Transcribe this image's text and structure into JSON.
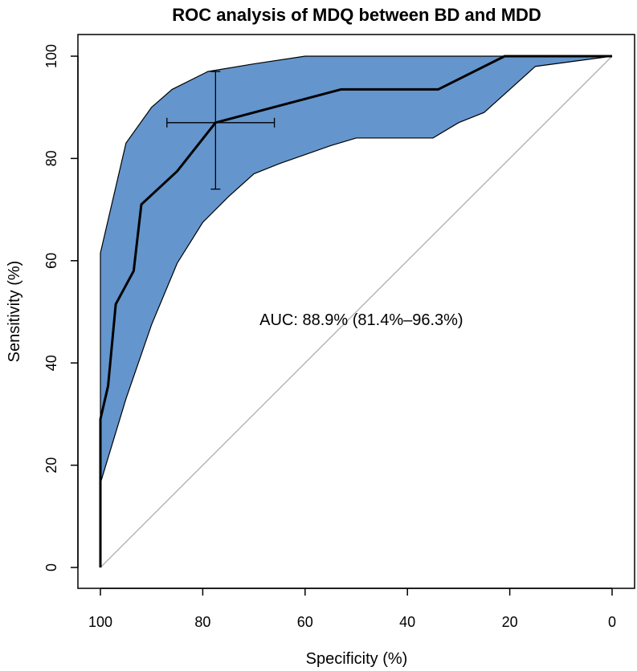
{
  "chart_data": {
    "type": "line",
    "title": "ROC analysis of MDQ between BD and MDD",
    "xlabel": "Specificity (%)",
    "ylabel": "Sensitivity (%)",
    "xlim": [
      100,
      0
    ],
    "ylim": [
      0,
      100
    ],
    "x_reversed": true,
    "x_ticks": [
      100,
      80,
      60,
      40,
      20,
      0
    ],
    "y_ticks": [
      0,
      20,
      40,
      60,
      80,
      100
    ],
    "grid": false,
    "colors": {
      "ci_band": "#6495cd",
      "roc_line": "#000000",
      "diagonal": "#b3b3b3"
    },
    "roc_curve": {
      "specificity": [
        100,
        100,
        98.5,
        97,
        93.5,
        92,
        85,
        77.5,
        53,
        34,
        21,
        0
      ],
      "sensitivity": [
        0,
        29,
        35.5,
        51.5,
        58,
        71,
        77.5,
        87,
        93.5,
        93.5,
        100,
        100
      ]
    },
    "ci_band": {
      "upper": {
        "specificity": [
          100,
          100,
          95,
          90,
          86,
          79,
          70,
          60,
          40,
          21,
          10,
          0
        ],
        "sensitivity": [
          16.5,
          61.5,
          83,
          90,
          93.5,
          97,
          98.5,
          100,
          100,
          100,
          100,
          100
        ]
      },
      "lower": {
        "specificity": [
          100,
          95,
          90,
          85,
          80,
          75,
          70,
          65,
          55,
          50,
          35,
          30,
          25,
          15,
          0
        ],
        "sensitivity": [
          16.5,
          33,
          47.5,
          59.5,
          67.5,
          72.5,
          77,
          79,
          82.5,
          84,
          84,
          87,
          89,
          98,
          100
        ]
      }
    },
    "best_threshold_ci": {
      "specificity": 77.5,
      "sensitivity": 87,
      "specificity_range": [
        87,
        66
      ],
      "sensitivity_range": [
        74,
        97
      ]
    },
    "annotation": "AUC: 88.9% (81.4%–96.3%)",
    "annotation_position": {
      "specificity": 49,
      "sensitivity": 48.5
    }
  }
}
